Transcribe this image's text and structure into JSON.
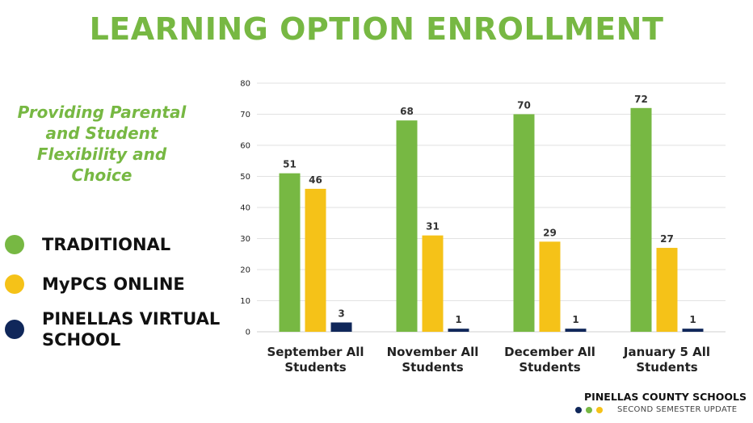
{
  "title": "LEARNING OPTION ENROLLMENT",
  "subtitle_lines": [
    "Providing Parental",
    "and Student",
    "Flexibility and",
    "Choice"
  ],
  "legend": [
    {
      "label": "TRADITIONAL",
      "color": "#77b843"
    },
    {
      "label": "MyPCS ONLINE",
      "color": "#f5c218"
    },
    {
      "label": "PINELLAS VIRTUAL SCHOOL",
      "color": "#10275a"
    }
  ],
  "footer": {
    "brand": "PINELLAS COUNTY SCHOOLS",
    "subtitle": "SECOND SEMESTER UPDATE",
    "dot_colors": [
      "#10275a",
      "#77b843",
      "#f5c218"
    ]
  },
  "chart_data": {
    "type": "bar",
    "categories": [
      [
        "September All",
        "Students"
      ],
      [
        "November All",
        "Students"
      ],
      [
        "December All",
        "Students"
      ],
      [
        "January 5 All",
        "Students"
      ]
    ],
    "series": [
      {
        "name": "TRADITIONAL",
        "color": "#77b843",
        "values": [
          51,
          68,
          70,
          72
        ]
      },
      {
        "name": "MyPCS ONLINE",
        "color": "#f5c218",
        "values": [
          46,
          31,
          29,
          27
        ]
      },
      {
        "name": "PINELLAS VIRTUAL SCHOOL",
        "color": "#10275a",
        "values": [
          3,
          1,
          1,
          1
        ]
      }
    ],
    "ylim": [
      0,
      80
    ],
    "yticks": [
      0,
      10,
      20,
      30,
      40,
      50,
      60,
      70,
      80
    ],
    "grid": true,
    "legend_position": "left"
  }
}
